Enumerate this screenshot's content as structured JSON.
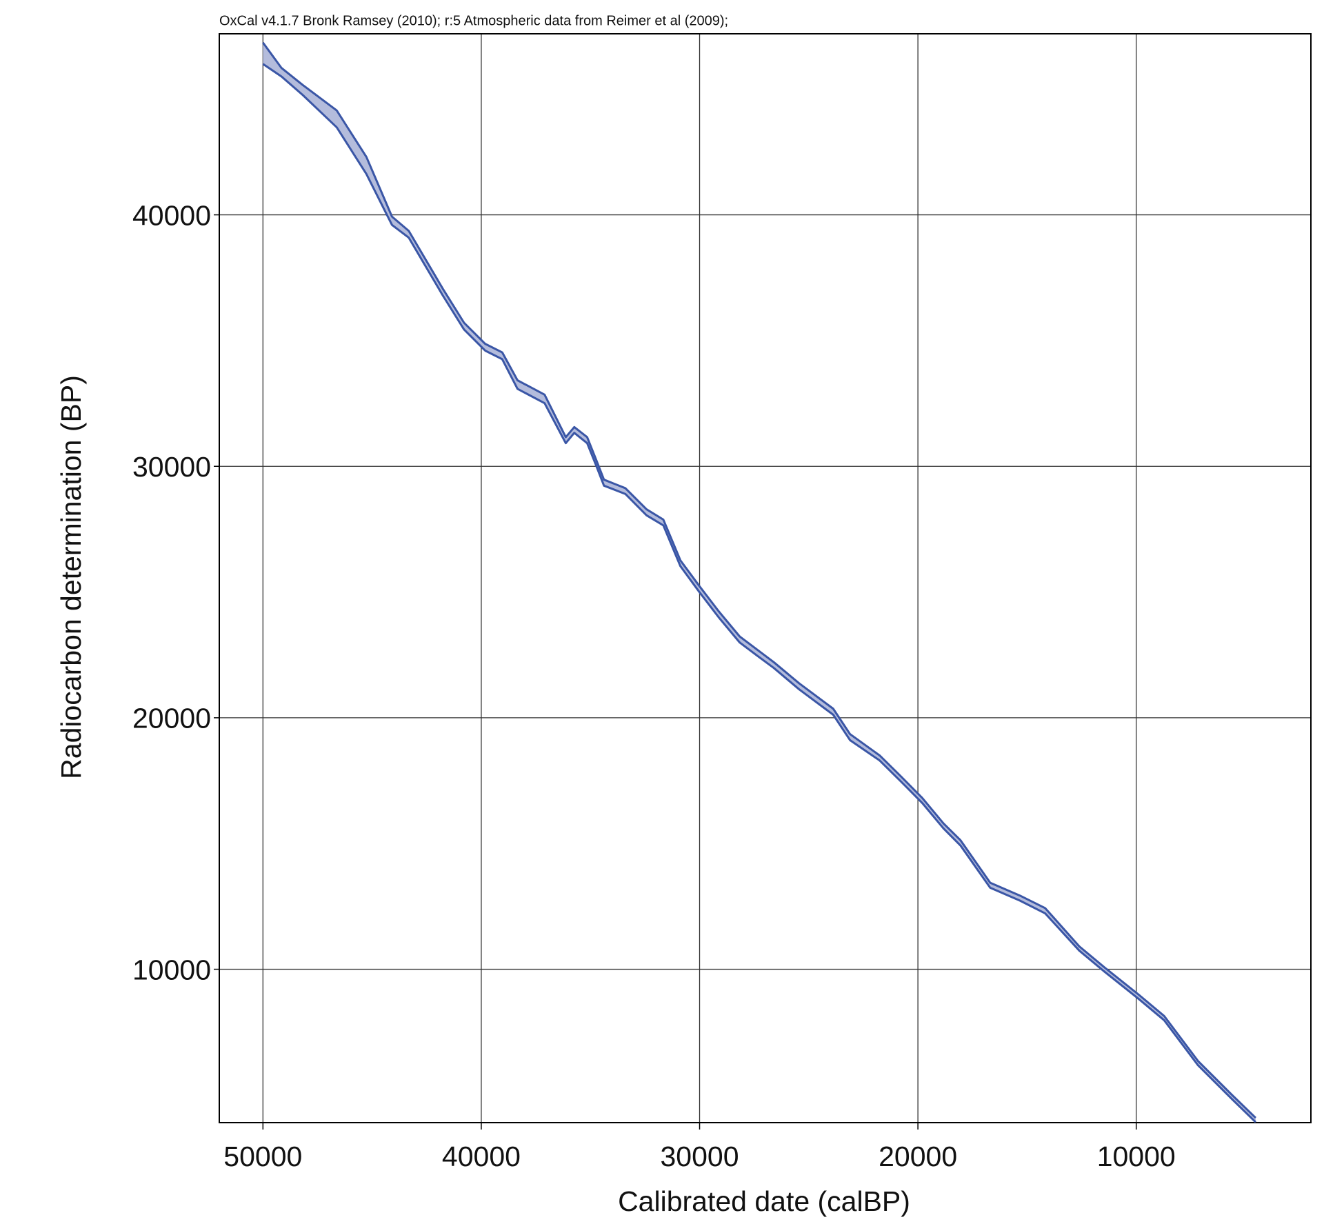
{
  "chart_data": {
    "type": "band",
    "title": "OxCal v4.1.7 Bronk Ramsey (2010); r:5 Atmospheric data from Reimer et al (2009);",
    "x_label": "Calibrated date (calBP)",
    "y_label": "Radiocarbon determination (BP)",
    "x": [
      50000,
      49150,
      48170,
      46620,
      45260,
      44090,
      43320,
      41760,
      40790,
      39820,
      39040,
      38340,
      37100,
      36130,
      35740,
      35150,
      34760,
      34380,
      33400,
      32430,
      31660,
      30880,
      30020,
      29130,
      28160,
      27380,
      26600,
      25440,
      23880,
      23110,
      21750,
      20770,
      19800,
      18830,
      18050,
      16690,
      15330,
      14170,
      12610,
      11450,
      9890,
      8720,
      7170,
      5610,
      4530
    ],
    "upper": [
      46850,
      45840,
      45160,
      44150,
      42300,
      39930,
      39360,
      37060,
      35710,
      34870,
      34530,
      33420,
      32850,
      31160,
      31560,
      31160,
      30310,
      29470,
      29130,
      28290,
      27880,
      26260,
      25250,
      24240,
      23230,
      22720,
      22210,
      21370,
      20360,
      19350,
      18500,
      17660,
      16810,
      15800,
      15130,
      13440,
      12930,
      12430,
      10910,
      10070,
      8990,
      8140,
      6350,
      5000,
      4090
    ],
    "lower": [
      46000,
      45500,
      44760,
      43480,
      41620,
      39600,
      39090,
      36790,
      35440,
      34600,
      34260,
      33080,
      32510,
      30920,
      31330,
      30920,
      30080,
      29230,
      28900,
      28050,
      27650,
      26030,
      25010,
      24000,
      22990,
      22480,
      21980,
      21130,
      20120,
      19110,
      18300,
      17460,
      16610,
      15600,
      14920,
      13240,
      12730,
      12220,
      10740,
      9900,
      8820,
      7970,
      6180,
      4830,
      3920
    ],
    "line_color": "#3a56a6",
    "fill_color": "#b4bcdc",
    "xlim": [
      52000,
      2000
    ],
    "ylim": [
      3900,
      47200
    ],
    "xticks": [
      50000,
      40000,
      30000,
      20000,
      10000
    ],
    "yticks": [
      10000,
      20000,
      30000,
      40000
    ],
    "grid": true
  }
}
